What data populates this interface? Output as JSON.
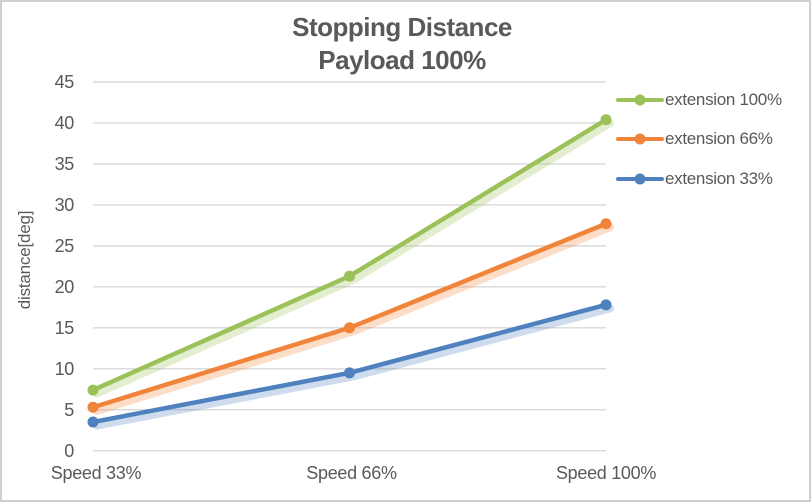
{
  "window": {
    "background": "#ffffff",
    "border_color": "#d0d0d0"
  },
  "chart_data": {
    "type": "line",
    "title_line1": "Stopping Distance",
    "title_line2": "Payload 100%",
    "ylabel": "distance[deg]",
    "xlabel": "",
    "categories": [
      "Speed 33%",
      "Speed 66%",
      "Speed 100%"
    ],
    "series": [
      {
        "name": "extension 100%",
        "color": "#9cc158",
        "values": [
          7.4,
          21.3,
          40.4
        ]
      },
      {
        "name": "extension 66%",
        "color": "#f0843b",
        "values": [
          5.3,
          15.0,
          27.7
        ]
      },
      {
        "name": "extension 33%",
        "color": "#4e81bd",
        "values": [
          3.5,
          9.5,
          17.8
        ]
      }
    ],
    "ylim": [
      0,
      45
    ],
    "yticks": [
      0,
      5,
      10,
      15,
      20,
      25,
      30,
      35,
      40,
      45
    ],
    "grid": true,
    "legend_position": "right",
    "gridline_color": "#d9d9d9",
    "text_color": "#595959"
  }
}
